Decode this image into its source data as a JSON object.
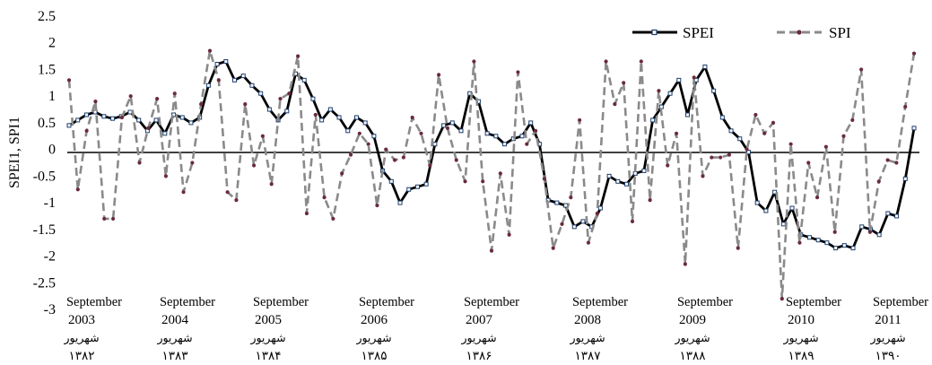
{
  "chart_data": {
    "type": "line",
    "ylabel": "SPEI1, SPI1",
    "ylim": [
      -3,
      2.5
    ],
    "yticks": [
      "2.5",
      "2",
      "1.5",
      "1",
      "0.5",
      "0",
      "-0.5",
      "-1",
      "-1.5",
      "-2",
      "-2.5",
      "-3"
    ],
    "grid": false,
    "legend_position": "top-right",
    "x_month_labels": [
      "September",
      "September",
      "September",
      "September",
      "September",
      "September",
      "September",
      "September",
      "September"
    ],
    "x_year_labels": [
      "2003",
      "2004",
      "2005",
      "2006",
      "2007",
      "2008",
      "2009",
      "2010",
      "2011"
    ],
    "x_persian_month_labels": [
      "شهریور",
      "شهریور",
      "شهریور",
      "شهریور",
      "شهریور",
      "شهریور",
      "شهریور",
      "شهریور",
      "شهریور"
    ],
    "x_persian_year_labels": [
      "۱۳۸۲",
      "۱۳۸۳",
      "۱۳۸۴",
      "۱۳۸۵",
      "۱۳۸۶",
      "۱۳۸۷",
      "۱۳۸۸",
      "۱۳۸۹",
      "۱۳۹۰"
    ],
    "series": [
      {
        "name": "SPEI",
        "color": "#000000",
        "style": "solid",
        "marker": "square-outline",
        "values": [
          0.45,
          0.55,
          0.65,
          0.7,
          0.62,
          0.58,
          0.62,
          0.7,
          0.55,
          0.35,
          0.55,
          0.3,
          0.65,
          0.6,
          0.5,
          0.6,
          1.2,
          1.6,
          1.65,
          1.3,
          1.38,
          1.2,
          1.05,
          0.75,
          0.55,
          0.72,
          1.42,
          1.3,
          0.95,
          0.55,
          0.75,
          0.6,
          0.35,
          0.6,
          0.5,
          0.25,
          -0.4,
          -0.6,
          -1.0,
          -0.75,
          -0.7,
          -0.65,
          0.1,
          0.45,
          0.5,
          0.35,
          1.05,
          0.9,
          0.3,
          0.25,
          0.1,
          0.2,
          0.25,
          0.5,
          0.1,
          -0.95,
          -1.0,
          -1.05,
          -1.45,
          -1.35,
          -1.45,
          -1.1,
          -0.5,
          -0.6,
          -0.65,
          -0.45,
          -0.4,
          0.55,
          0.8,
          1.05,
          1.3,
          0.65,
          1.3,
          1.55,
          1.1,
          0.6,
          0.35,
          0.2,
          -0.05,
          -1.0,
          -1.15,
          -0.8,
          -1.4,
          -1.1,
          -1.6,
          -1.65,
          -1.7,
          -1.75,
          -1.85,
          -1.8,
          -1.85,
          -1.45,
          -1.5,
          -1.6,
          -1.2,
          -1.25,
          -0.55,
          0.4
        ]
      },
      {
        "name": "SPI",
        "color": "#8a8a8a",
        "style": "dashed",
        "marker": "dot",
        "values": [
          1.3,
          -0.75,
          0.35,
          0.9,
          -1.3,
          -1.3,
          0.6,
          1.0,
          -0.25,
          0.4,
          0.95,
          -0.5,
          1.05,
          -0.8,
          -0.25,
          0.85,
          1.85,
          1.3,
          -0.8,
          -0.95,
          0.85,
          -0.3,
          0.25,
          -0.65,
          0.95,
          1.05,
          1.75,
          -1.2,
          0.65,
          -0.9,
          -1.3,
          -0.45,
          -0.1,
          0.3,
          0.1,
          -1.05,
          0.0,
          -0.2,
          -0.15,
          0.6,
          0.3,
          -0.3,
          1.4,
          0.4,
          -0.2,
          -0.6,
          1.65,
          -0.6,
          -1.9,
          -0.45,
          -1.6,
          1.45,
          0.1,
          0.35,
          -0.55,
          -1.85,
          -1.4,
          -0.9,
          0.55,
          -1.75,
          -1.2,
          1.65,
          0.85,
          1.25,
          -1.35,
          1.65,
          -0.95,
          1.1,
          -0.3,
          0.3,
          -2.15,
          1.35,
          -0.5,
          -0.15,
          -0.15,
          -0.1,
          -1.85,
          0.0,
          0.65,
          0.3,
          0.5,
          -2.8,
          0.1,
          -1.75,
          -0.25,
          -0.9,
          0.05,
          -1.55,
          0.25,
          0.55,
          1.5,
          -1.55,
          -0.6,
          -0.2,
          -0.25,
          0.8,
          1.8
        ]
      }
    ]
  }
}
